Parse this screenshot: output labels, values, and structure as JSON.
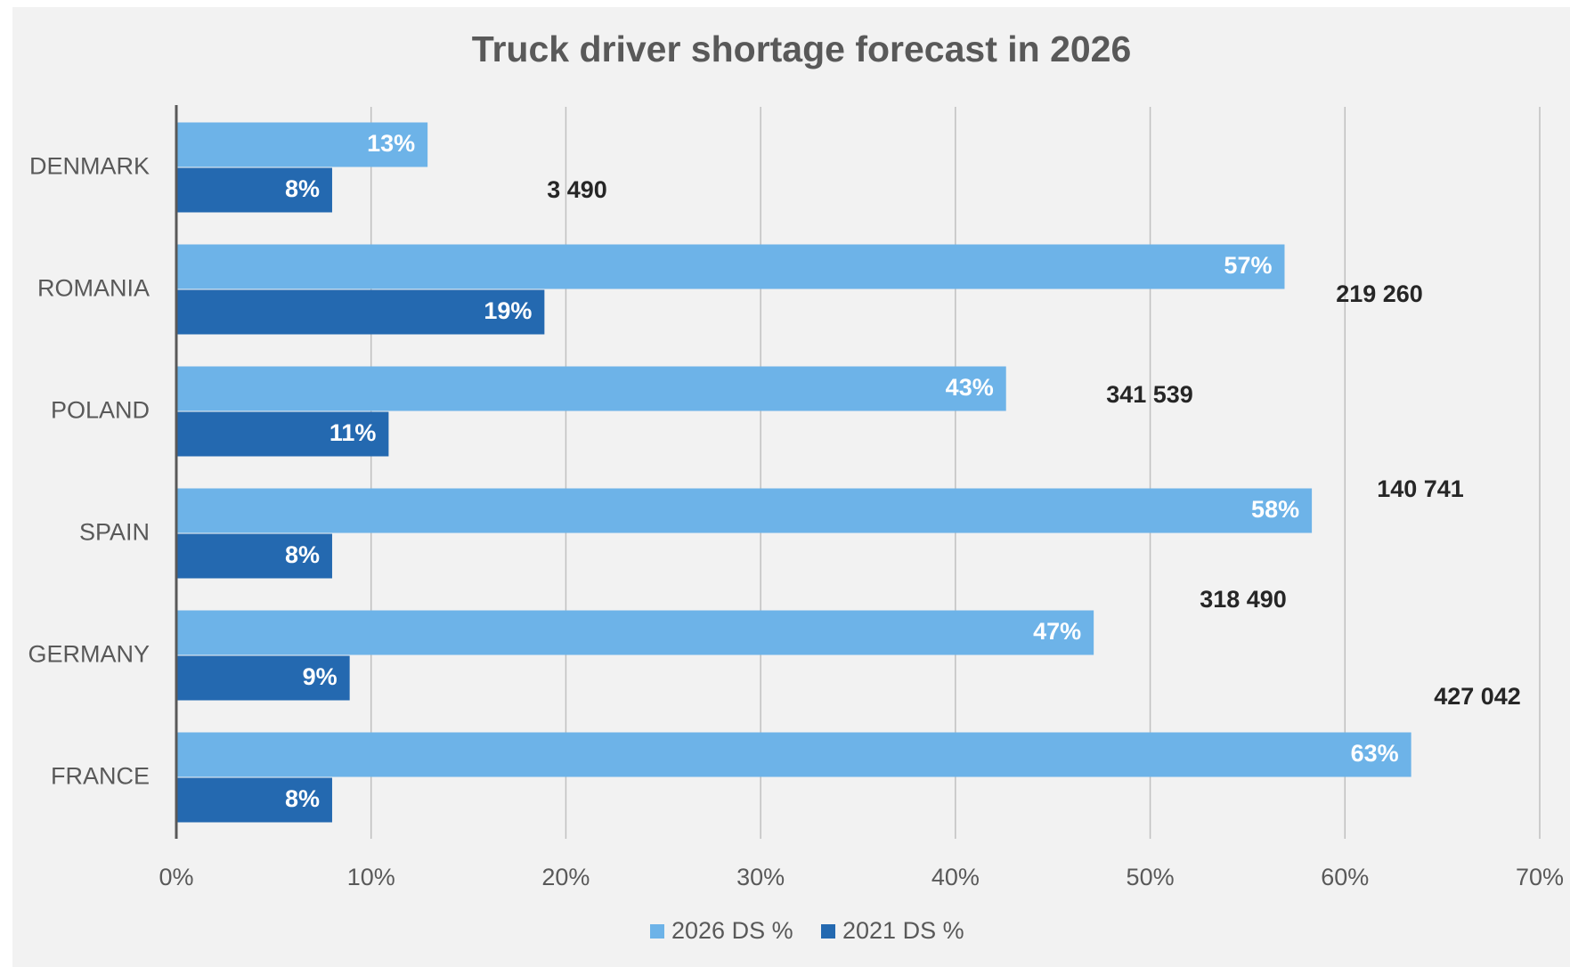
{
  "chart_data": {
    "type": "hbar",
    "title": "Truck driver shortage forecast in  2026",
    "categories": [
      "DENMARK",
      "ROMANIA",
      "POLAND",
      "SPAIN",
      "GERMANY",
      "FRANCE"
    ],
    "series": [
      {
        "name": "2026 DS %",
        "color": "#6db3e8",
        "values": [
          12.9,
          56.9,
          42.6,
          58.3,
          47.1,
          63.4
        ],
        "value_labels": [
          "13%",
          "57%",
          "43%",
          "58%",
          "47%",
          "63%"
        ]
      },
      {
        "name": "2021 DS %",
        "color": "#2469b0",
        "values": [
          8,
          18.9,
          10.9,
          8,
          8.9,
          8
        ],
        "value_labels": [
          "8%",
          "19%",
          "11%",
          "8%",
          "9%",
          "8%"
        ]
      }
    ],
    "annotations": [
      "3 490",
      "219 260",
      "341 539",
      "140 741",
      "318 490",
      "427 042"
    ],
    "xlim": [
      0,
      70
    ],
    "xticks": [
      {
        "value": 0,
        "label": "0%"
      },
      {
        "value": 10,
        "label": "10%"
      },
      {
        "value": 20,
        "label": "20%"
      },
      {
        "value": 30,
        "label": "30%"
      },
      {
        "value": 40,
        "label": "40%"
      },
      {
        "value": 50,
        "label": "50%"
      },
      {
        "value": 60,
        "label": "60%"
      },
      {
        "value": 70,
        "label": "70%"
      }
    ],
    "grid": true,
    "legend": "bottom"
  }
}
